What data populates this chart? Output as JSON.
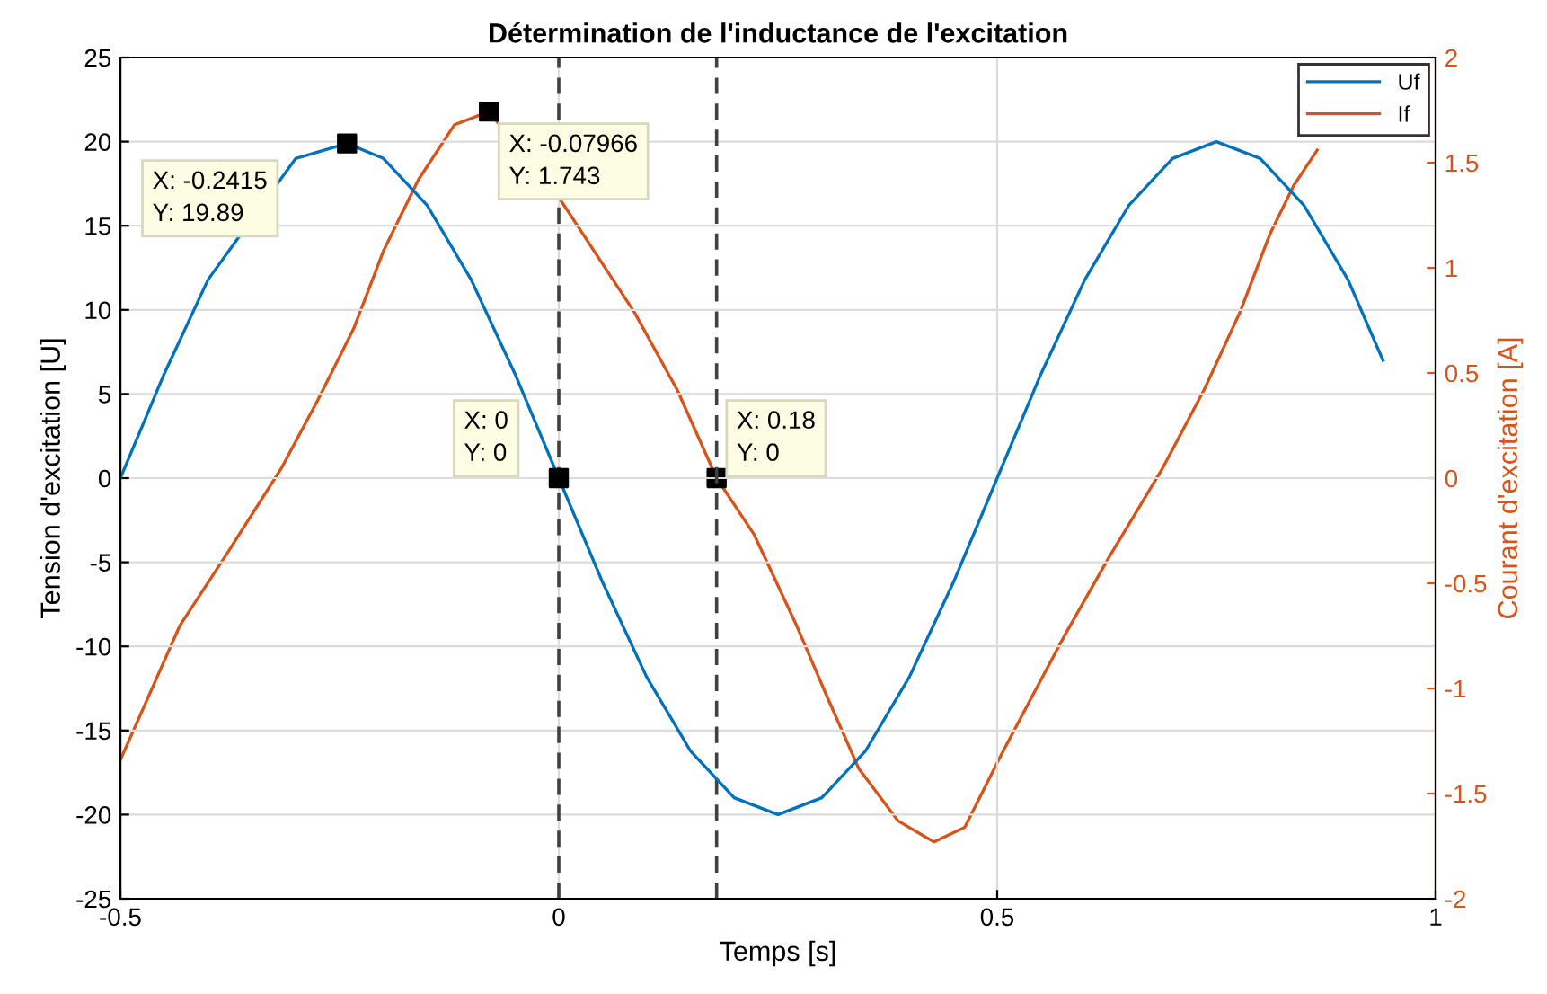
{
  "chart_data": {
    "type": "line",
    "title": "Détermination de l'inductance de l'excitation",
    "xlabel": "Temps [s]",
    "ylabel": "Tension d'excitation [U]",
    "y2label": "Courant d'excitation [A]",
    "xlim": [
      -0.5,
      1
    ],
    "xticks": [
      -0.5,
      0,
      0.5,
      1
    ],
    "ylim": [
      -25,
      25
    ],
    "yticks": [
      -25,
      -20,
      -15,
      -10,
      -5,
      0,
      5,
      10,
      15,
      20,
      25
    ],
    "y2lim": [
      -2,
      2
    ],
    "y2ticks": [
      -2,
      -1.5,
      -1,
      -0.5,
      0,
      0.5,
      1,
      1.5,
      2
    ],
    "grid": true,
    "legend": "top right",
    "line_style": "solid",
    "marker": "none",
    "series": [
      {
        "name": "Uf",
        "color": "#0072bd",
        "x": [
          -0.5,
          -0.45,
          -0.4,
          -0.3,
          -0.2415,
          -0.2,
          -0.15,
          -0.1,
          -0.05,
          0,
          0.05,
          0.1,
          0.15,
          0.2,
          0.25,
          0.3,
          0.35,
          0.4,
          0.45,
          0.5,
          0.55,
          0.6,
          0.65,
          0.7,
          0.75,
          0.8,
          0.85,
          0.9,
          0.94
        ],
        "values": [
          0,
          6.2,
          11.8,
          19.0,
          19.89,
          19.0,
          16.2,
          11.8,
          6.2,
          0,
          -6.2,
          -11.8,
          -16.2,
          -19.0,
          -20.0,
          -19.0,
          -16.2,
          -11.8,
          -6.2,
          0,
          6.2,
          11.8,
          16.2,
          19.0,
          20.0,
          19.0,
          16.2,
          11.8,
          7.0
        ]
      },
      {
        "name": "If",
        "color": "#d95319",
        "axis": "y2",
        "x": [
          -0.5,
          -0.432,
          -0.377,
          -0.316,
          -0.275,
          -0.234,
          -0.2,
          -0.16,
          -0.119,
          -0.07966,
          0.004,
          0.045,
          0.086,
          0.135,
          0.18,
          0.223,
          0.27,
          0.305,
          0.342,
          0.387,
          0.428,
          0.463,
          0.504,
          0.537,
          0.578,
          0.627,
          0.689,
          0.736,
          0.777,
          0.811,
          0.838,
          0.865
        ],
        "values": [
          -1.34,
          -0.7,
          -0.35,
          0.05,
          0.37,
          0.71,
          1.08,
          1.42,
          1.68,
          1.743,
          1.31,
          1.05,
          0.79,
          0.42,
          0,
          -0.27,
          -0.69,
          -1.03,
          -1.38,
          -1.63,
          -1.73,
          -1.66,
          -1.32,
          -1.06,
          -0.74,
          -0.38,
          0.05,
          0.42,
          0.79,
          1.16,
          1.39,
          1.56
        ]
      },
      {
        "type": "scatter",
        "color": "#000000",
        "marker": "square",
        "x": [
          -0.2415,
          0
        ],
        "values": [
          19.89,
          0
        ]
      },
      {
        "type": "scatter",
        "color": "#000000",
        "marker": "square",
        "axis": "y2",
        "x": [
          -0.07966,
          0.18
        ],
        "values": [
          1.743,
          0
        ]
      }
    ],
    "ref_lines": [
      {
        "axis": "x",
        "value": 0,
        "color": "#404040",
        "line_style": "dashed"
      },
      {
        "axis": "x",
        "value": 0.18,
        "color": "#404040",
        "line_style": "dashed"
      }
    ],
    "annotations": [
      "X: -0.2415\nY: 19.89",
      "X: -0.07966\nY: 1.743",
      "X: 0\nY: 0",
      "X: 0.18\nY: 0"
    ]
  }
}
